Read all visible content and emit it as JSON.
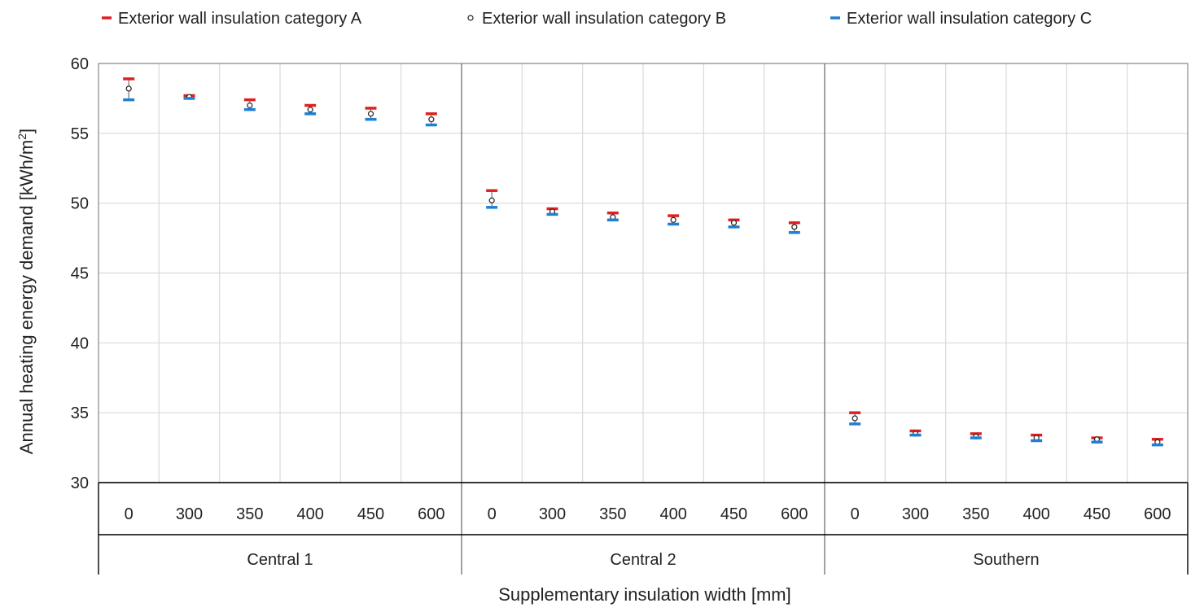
{
  "chart_data": {
    "type": "scatter",
    "title": "",
    "xlabel": "Supplementary  insulation width [mm]",
    "ylabel": "Annual heating energy demand  [kWh/m",
    "ylabel_sup": "2",
    "ylabel_end": "]",
    "ylim": [
      30,
      60
    ],
    "yticks": [
      30,
      35,
      40,
      45,
      50,
      55,
      60
    ],
    "grid": true,
    "legend_position": "top",
    "groups": [
      {
        "name": "Central 1",
        "categories": [
          "0",
          "300",
          "350",
          "400",
          "450",
          "600"
        ]
      },
      {
        "name": "Central 2",
        "categories": [
          "0",
          "300",
          "350",
          "400",
          "450",
          "600"
        ]
      },
      {
        "name": "Southern",
        "categories": [
          "0",
          "300",
          "350",
          "400",
          "450",
          "600"
        ]
      }
    ],
    "series": [
      {
        "name": "Exterior wall insulation category A",
        "marker": "dash",
        "color": "#e02020",
        "values": [
          58.9,
          57.7,
          57.4,
          57.0,
          56.8,
          56.4,
          50.9,
          49.6,
          49.3,
          49.1,
          48.8,
          48.6,
          35.0,
          33.7,
          33.5,
          33.4,
          33.2,
          33.1
        ]
      },
      {
        "name": "Exterior wall insulation category B",
        "marker": "circle",
        "color": "#222222",
        "values": [
          58.2,
          57.6,
          57.0,
          56.7,
          56.4,
          56.0,
          50.2,
          49.4,
          49.0,
          48.8,
          48.6,
          48.3,
          34.6,
          33.5,
          33.3,
          33.2,
          33.1,
          32.9
        ]
      },
      {
        "name": "Exterior wall insulation category C",
        "marker": "dash",
        "color": "#1f7fd0",
        "values": [
          57.4,
          57.5,
          56.7,
          56.4,
          56.0,
          55.6,
          49.7,
          49.2,
          48.8,
          48.5,
          48.3,
          47.9,
          34.2,
          33.4,
          33.2,
          33.0,
          32.9,
          32.7
        ]
      }
    ]
  }
}
